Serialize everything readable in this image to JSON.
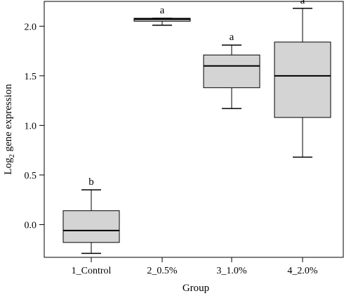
{
  "chart_data": {
    "type": "box",
    "xlabel": "Group",
    "ylabel": {
      "prefix": "Log",
      "subscript": "2",
      "suffix": " gene expression"
    },
    "ylim": [
      -0.33,
      2.25
    ],
    "yticks": [
      0.0,
      0.5,
      1.0,
      1.5,
      2.0
    ],
    "ytick_labels": [
      "0.0",
      "0.5",
      "1.0",
      "1.5",
      "2.0"
    ],
    "categories": [
      "1_Control",
      "2_0.5%",
      "3_1.0%",
      "4_2.0%"
    ],
    "boxes": [
      {
        "group": "1_Control",
        "whisker_low": -0.29,
        "q1": -0.18,
        "median": -0.06,
        "q3": 0.14,
        "whisker_high": 0.35,
        "significance": "b"
      },
      {
        "group": "2_0.5%",
        "whisker_low": 2.01,
        "q1": 2.05,
        "median": 2.07,
        "q3": 2.08,
        "whisker_high": 2.08,
        "significance": "a"
      },
      {
        "group": "3_1.0%",
        "whisker_low": 1.17,
        "q1": 1.38,
        "median": 1.6,
        "q3": 1.71,
        "whisker_high": 1.81,
        "significance": "a"
      },
      {
        "group": "4_2.0%",
        "whisker_low": 0.68,
        "q1": 1.08,
        "median": 1.5,
        "q3": 1.84,
        "whisker_high": 2.18,
        "significance": "a"
      }
    ],
    "colors": {
      "box_fill": "#d4d4d4",
      "stroke": "#000000"
    }
  }
}
